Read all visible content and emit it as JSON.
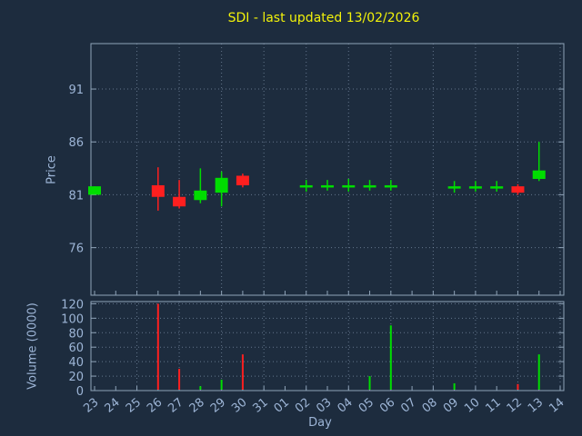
{
  "colors": {
    "background": "#1d2c3e",
    "title": "#f2f20a",
    "axis_text": "#9db5d6",
    "axis_line": "#8fa3b8",
    "grid": "#93a7c0",
    "up": "#00dd00",
    "down": "#ff1f1f"
  },
  "chart_data": [
    {
      "type": "candlestick",
      "title": "SDI - last updated 13/02/2026",
      "xlabel": "Day",
      "ylabel": "Price",
      "ylim": [
        71.5,
        95.3
      ],
      "yticks": [
        76,
        81,
        86,
        91
      ],
      "grid": true,
      "legend": "none",
      "categories": [
        "23",
        "24",
        "25",
        "26",
        "27",
        "28",
        "29",
        "30",
        "31",
        "01",
        "02",
        "03",
        "04",
        "05",
        "06",
        "07",
        "08",
        "09",
        "10",
        "11",
        "12",
        "13",
        "14"
      ],
      "candles": [
        {
          "day": "23",
          "open": 81.0,
          "high": 81.8,
          "low": 81.0,
          "close": 81.8
        },
        {
          "day": "26",
          "open": 81.9,
          "high": 83.6,
          "low": 79.5,
          "close": 80.8
        },
        {
          "day": "27",
          "open": 80.8,
          "high": 82.4,
          "low": 79.7,
          "close": 79.9
        },
        {
          "day": "28",
          "open": 80.5,
          "high": 83.5,
          "low": 80.2,
          "close": 81.4
        },
        {
          "day": "29",
          "open": 81.2,
          "high": 83.2,
          "low": 79.9,
          "close": 82.6
        },
        {
          "day": "30",
          "open": 82.8,
          "high": 83.0,
          "low": 81.7,
          "close": 81.9
        },
        {
          "day": "02",
          "open": 81.8,
          "high": 82.4,
          "low": 81.3,
          "close": 81.9
        },
        {
          "day": "03",
          "open": 81.9,
          "high": 82.4,
          "low": 81.4,
          "close": 81.9
        },
        {
          "day": "04",
          "open": 81.9,
          "high": 82.5,
          "low": 81.3,
          "close": 81.9
        },
        {
          "day": "05",
          "open": 81.9,
          "high": 82.4,
          "low": 81.4,
          "close": 81.9
        },
        {
          "day": "06",
          "open": 81.9,
          "high": 82.4,
          "low": 81.4,
          "close": 81.9
        },
        {
          "day": "09",
          "open": 81.7,
          "high": 82.3,
          "low": 81.2,
          "close": 81.8
        },
        {
          "day": "10",
          "open": 81.8,
          "high": 82.3,
          "low": 81.3,
          "close": 81.8
        },
        {
          "day": "11",
          "open": 81.8,
          "high": 82.3,
          "low": 81.3,
          "close": 81.8
        },
        {
          "day": "12",
          "open": 81.8,
          "high": 82.0,
          "low": 81.0,
          "close": 81.2
        },
        {
          "day": "13",
          "open": 82.5,
          "high": 86.0,
          "low": 82.3,
          "close": 83.3
        }
      ]
    },
    {
      "type": "bar",
      "ylabel": "Volume (0000)",
      "ylim": [
        0,
        123
      ],
      "yticks": [
        0,
        20,
        40,
        60,
        80,
        100,
        120
      ],
      "grid": true,
      "bars": [
        {
          "day": "26",
          "value": 120,
          "direction": "down"
        },
        {
          "day": "27",
          "value": 30,
          "direction": "down"
        },
        {
          "day": "28",
          "value": 6,
          "direction": "up"
        },
        {
          "day": "29",
          "value": 15,
          "direction": "up"
        },
        {
          "day": "30",
          "value": 50,
          "direction": "down"
        },
        {
          "day": "05",
          "value": 20,
          "direction": "up"
        },
        {
          "day": "06",
          "value": 90,
          "direction": "up"
        },
        {
          "day": "09",
          "value": 10,
          "direction": "up"
        },
        {
          "day": "12",
          "value": 9,
          "direction": "down"
        },
        {
          "day": "13",
          "value": 50,
          "direction": "up"
        }
      ]
    }
  ]
}
